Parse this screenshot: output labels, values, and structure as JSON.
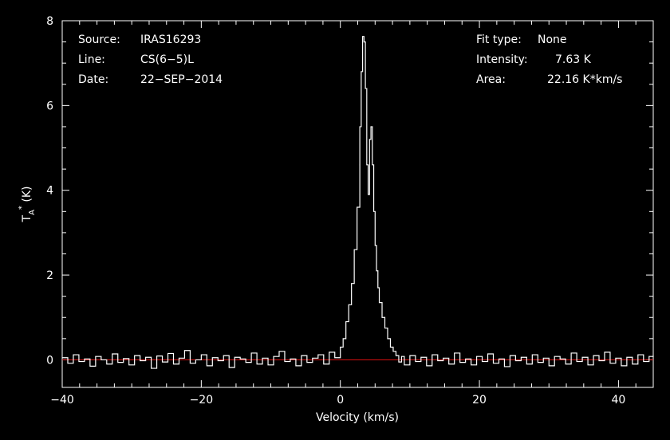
{
  "info_left": [
    {
      "key": "Source:",
      "value": "IRAS16293"
    },
    {
      "key": "Line:",
      "value": "CS(6−5)L"
    },
    {
      "key": "Date:",
      "value": "22−SEP−2014"
    }
  ],
  "info_right": [
    {
      "key": "Fit type:",
      "value": "None"
    },
    {
      "key": "Intensity:",
      "value": "7.63 K"
    },
    {
      "key": "Area:",
      "value": "22.16 K*km/s"
    }
  ],
  "chart_data": {
    "type": "line",
    "style": "step",
    "xlabel": "Velocity (km/s)",
    "ylabel_main": "T",
    "ylabel_sub": "A",
    "ylabel_sup": "*",
    "ylabel_unit": " (K)",
    "xlim": [
      -40,
      45
    ],
    "ylim": [
      -0.65,
      8.0
    ],
    "xticks": [
      -40,
      -20,
      0,
      20,
      40
    ],
    "xtick_labels": [
      "−40",
      "−20",
      "0",
      "20",
      "40"
    ],
    "yticks": [
      0,
      2,
      4,
      6,
      8
    ],
    "ytick_labels": [
      "0",
      "2",
      "4",
      "6",
      "8"
    ],
    "baseline_y": 0,
    "colors": {
      "background": "#000000",
      "spectrum": "#ffffff",
      "baseline": "#e01010",
      "axes": "#ffffff"
    },
    "series": [
      {
        "x": [
          -40.0,
          -39.2,
          -38.4,
          -37.6,
          -36.8,
          -36.0,
          -35.2,
          -34.4,
          -33.6,
          -32.8,
          -32.0,
          -31.2,
          -30.4,
          -29.6,
          -28.8,
          -28.0,
          -27.2,
          -26.4,
          -25.6,
          -24.8,
          -24.0,
          -23.2,
          -22.4,
          -21.6,
          -20.8,
          -20.0,
          -19.2,
          -18.4,
          -17.6,
          -16.8,
          -16.0,
          -15.2,
          -14.4,
          -13.6,
          -12.8,
          -12.0,
          -11.2,
          -10.4,
          -9.6,
          -8.8,
          -8.0,
          -7.2,
          -6.4,
          -5.6,
          -4.8,
          -4.0,
          -3.2,
          -2.4,
          -1.6,
          -0.8,
          0.0,
          0.4,
          0.8,
          1.2,
          1.6,
          2.0,
          2.4,
          2.8,
          3.0,
          3.2,
          3.4,
          3.6,
          3.8,
          4.0,
          4.2,
          4.4,
          4.6,
          4.8,
          5.0,
          5.2,
          5.4,
          5.6,
          6.0,
          6.4,
          6.8,
          7.2,
          7.6,
          8.0,
          8.4,
          8.8,
          9.2,
          10.0,
          10.8,
          11.6,
          12.4,
          13.2,
          14.0,
          14.8,
          15.6,
          16.4,
          17.2,
          18.0,
          18.8,
          19.6,
          20.4,
          21.2,
          22.0,
          22.8,
          23.6,
          24.4,
          25.2,
          26.0,
          26.8,
          27.6,
          28.4,
          29.2,
          30.0,
          30.8,
          31.6,
          32.4,
          33.2,
          34.0,
          34.8,
          35.6,
          36.4,
          37.2,
          38.0,
          38.8,
          39.6,
          40.4,
          41.2,
          42.0,
          42.8,
          43.6,
          44.4,
          45.0
        ],
        "y": [
          0.05,
          -0.08,
          0.12,
          -0.04,
          0.02,
          -0.15,
          0.08,
          0.0,
          -0.1,
          0.14,
          -0.06,
          0.03,
          -0.12,
          0.1,
          -0.02,
          0.06,
          -0.2,
          0.09,
          -0.05,
          0.15,
          -0.1,
          0.04,
          0.22,
          -0.08,
          0.0,
          0.12,
          -0.14,
          0.05,
          -0.02,
          0.1,
          -0.18,
          0.06,
          0.02,
          -0.06,
          0.16,
          -0.1,
          0.04,
          -0.12,
          0.08,
          0.2,
          -0.04,
          0.02,
          -0.14,
          0.1,
          -0.06,
          0.04,
          0.12,
          -0.1,
          0.18,
          0.05,
          0.3,
          0.5,
          0.9,
          1.3,
          1.8,
          2.6,
          3.6,
          5.5,
          6.8,
          7.63,
          7.5,
          6.4,
          4.6,
          3.9,
          5.2,
          5.5,
          4.6,
          3.5,
          2.7,
          2.1,
          1.7,
          1.35,
          1.0,
          0.75,
          0.5,
          0.3,
          0.2,
          0.1,
          -0.05,
          0.08,
          -0.12,
          0.1,
          -0.04,
          0.06,
          -0.14,
          0.12,
          -0.02,
          0.04,
          -0.1,
          0.16,
          -0.06,
          0.02,
          -0.12,
          0.08,
          -0.04,
          0.14,
          -0.08,
          0.02,
          -0.16,
          0.1,
          -0.02,
          0.06,
          -0.1,
          0.12,
          -0.06,
          0.04,
          -0.14,
          0.08,
          0.02,
          -0.1,
          0.16,
          -0.04,
          0.06,
          -0.12,
          0.1,
          -0.02,
          0.18,
          -0.08,
          0.04,
          -0.14,
          0.06,
          -0.1,
          0.12,
          -0.04,
          0.08,
          0.1
        ]
      }
    ]
  }
}
